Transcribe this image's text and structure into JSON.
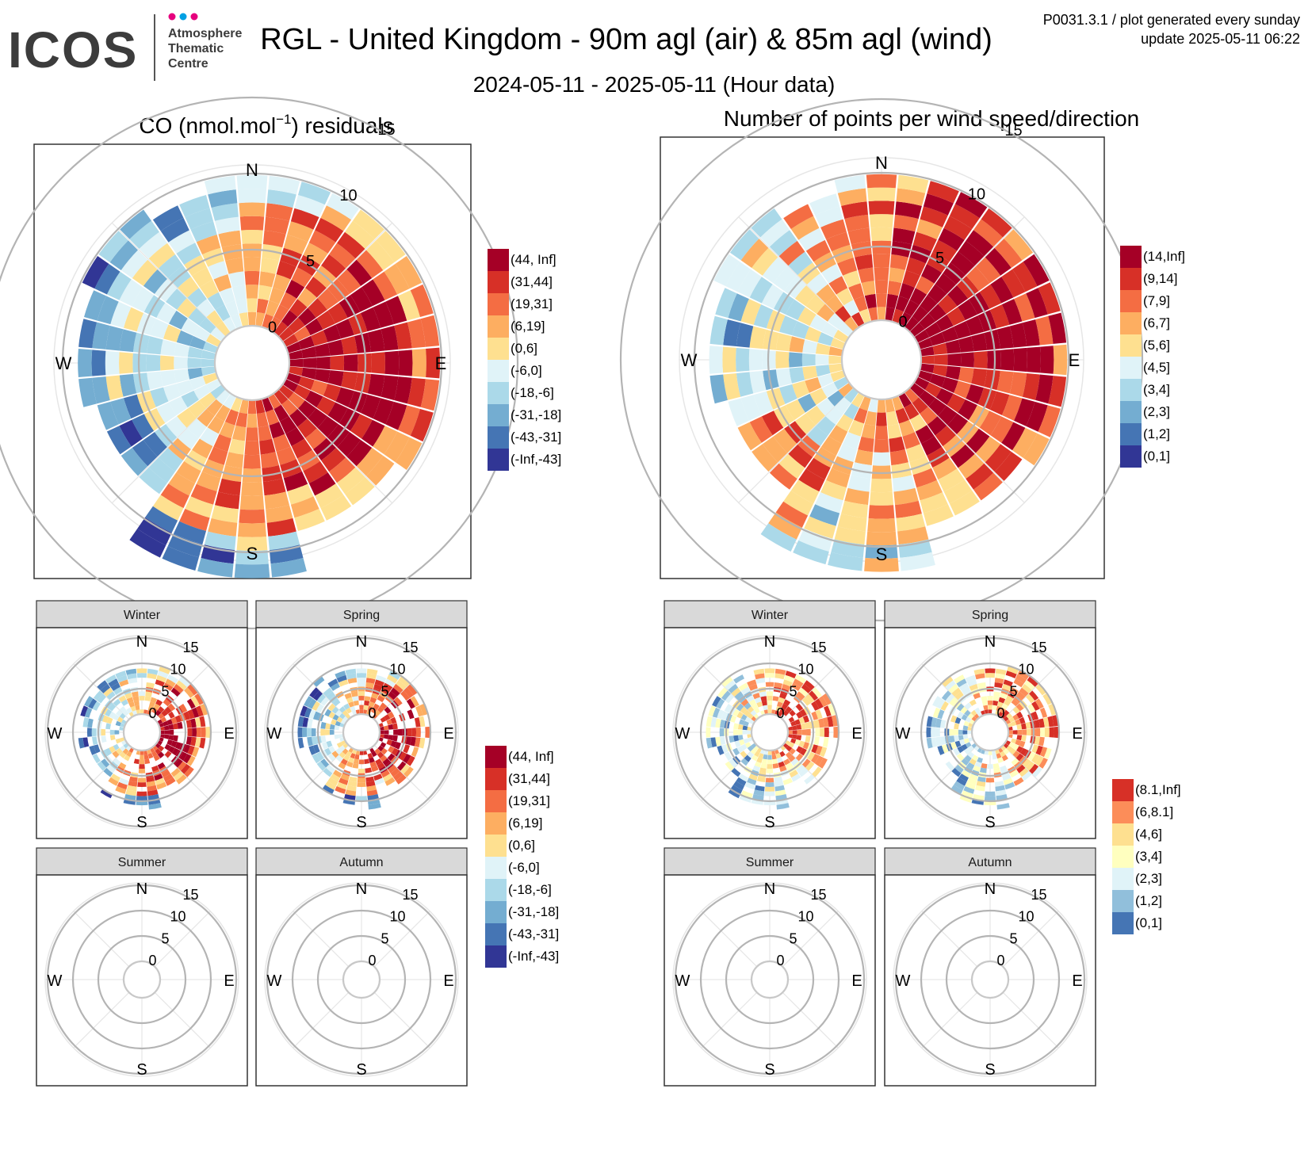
{
  "header": {
    "logo_text": "ICOS",
    "logo_sub": [
      "Atmosphere",
      "Thematic",
      "Centre"
    ],
    "logo_dot_colors": [
      "#e6007e",
      "#00a0e3",
      "#e6007e"
    ],
    "title": "RGL - United Kingdom - 90m agl (air) & 85m agl (wind)",
    "subtitle": "2024-05-11 - 2025-05-11 (Hour data)",
    "plot_id": "P0031.3.1 / plot generated every sunday",
    "update": "update  2025-05-11 06:22"
  },
  "compass": {
    "N": "N",
    "E": "E",
    "S": "S",
    "W": "W"
  },
  "ring_labels": [
    "0",
    "5",
    "10",
    "15"
  ],
  "panels": {
    "co_main_title_prefix": "CO (nmol.mol",
    "co_main_title_sup": "−1",
    "co_main_title_suffix": ") residuals",
    "count_main_title": "Number of points per wind speed/direction"
  },
  "legends": {
    "co": [
      "(44, Inf]",
      "(31,44]",
      "(19,31]",
      "(6,19]",
      "(0,6]",
      "(-6,0]",
      "(-18,-6]",
      "(-31,-18]",
      "(-43,-31]",
      "(-Inf,-43]"
    ],
    "co_colors": [
      "#a50026",
      "#d73027",
      "#f46d43",
      "#fdae61",
      "#fee090",
      "#e0f3f8",
      "#abd9e9",
      "#74add1",
      "#4575b4",
      "#313695"
    ],
    "count_main": [
      "(14,Inf]",
      "(9,14]",
      "(7,9]",
      "(6,7]",
      "(5,6]",
      "(4,5]",
      "(3,4]",
      "(2,3]",
      "(1,2]",
      "(0,1]"
    ],
    "count_season": [
      "(8.1,Inf]",
      "(6,8.1]",
      "(4,6]",
      "(3,4]",
      "(2,3]",
      "(1,2]",
      "(0,1]"
    ],
    "count_season_colors": [
      "#d73027",
      "#fc8d59",
      "#fee090",
      "#ffffbf",
      "#e0f3f8",
      "#91bfdb",
      "#4575b4"
    ]
  },
  "seasons": [
    "Winter",
    "Spring",
    "Summer",
    "Autumn"
  ],
  "chart_data": {
    "type": "heatmap",
    "coordinate_system": "polar",
    "radial_variable": "wind speed (rings 0, 5, 10, 15)",
    "angular_variable": "wind direction (N, E, S, W)",
    "charts": [
      {
        "title": "CO (nmol.mol−1) residuals",
        "legend_bins": [
          "(44, Inf]",
          "(31,44]",
          "(19,31]",
          "(6,19]",
          "(0,6]",
          "(-6,0]",
          "(-18,-6]",
          "(-31,-18]",
          "(-43,-31]",
          "(-Inf,-43]"
        ]
      },
      {
        "title": "Number of points per wind speed/direction",
        "legend_bins": [
          "(14,Inf]",
          "(9,14]",
          "(7,9]",
          "(6,7]",
          "(5,6]",
          "(4,5]",
          "(3,4]",
          "(2,3]",
          "(1,2]",
          "(0,1]"
        ]
      },
      {
        "facets": [
          "Winter",
          "Spring",
          "Summer",
          "Autumn"
        ],
        "variable": "CO residuals",
        "empty_facets": [
          "Summer",
          "Autumn"
        ]
      },
      {
        "facets": [
          "Winter",
          "Spring",
          "Summer",
          "Autumn"
        ],
        "variable": "points count",
        "legend_bins": [
          "(8.1,Inf]",
          "(6,8.1]",
          "(4,6]",
          "(3,4]",
          "(2,3]",
          "(1,2]",
          "(0,1]"
        ],
        "empty_facets": [
          "Summer",
          "Autumn"
        ]
      }
    ]
  }
}
